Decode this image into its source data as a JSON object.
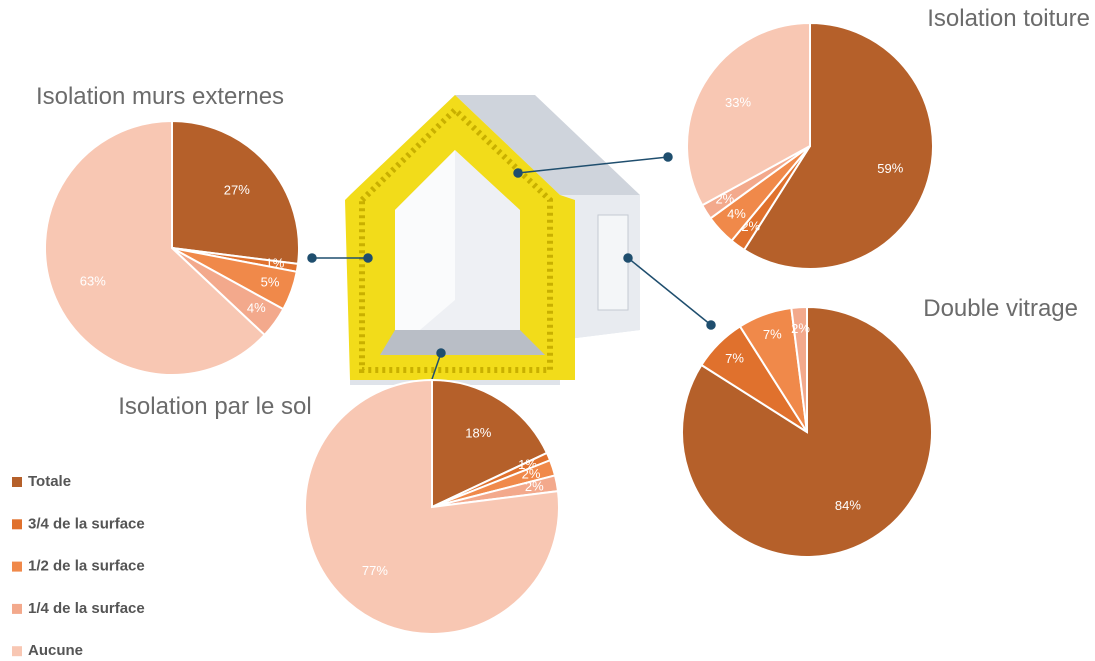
{
  "legend": {
    "categories": [
      "Totale",
      "3/4 de la surface",
      "1/2 de la surface",
      "1/4 de la surface",
      "Aucune"
    ],
    "colors": [
      "#b5602a",
      "#e0712d",
      "#f0894a",
      "#f3a98c",
      "#f8c7b3"
    ]
  },
  "chart_data": [
    {
      "type": "pie",
      "title": "Isolation murs externes",
      "values": [
        27,
        1,
        5,
        4,
        63
      ]
    },
    {
      "type": "pie",
      "title": "Isolation toiture",
      "values": [
        59,
        2,
        4,
        2,
        33
      ]
    },
    {
      "type": "pie",
      "title": "Double vitrage",
      "values": [
        84,
        7,
        7,
        2
      ]
    },
    {
      "type": "pie",
      "title": "Isolation par le sol",
      "values": [
        18,
        1,
        2,
        2,
        77
      ]
    }
  ]
}
